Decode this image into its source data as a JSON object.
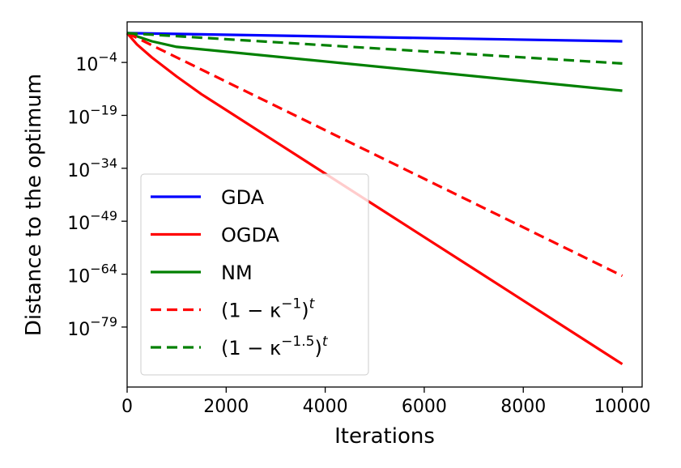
{
  "chart_data": {
    "type": "line",
    "xlabel": "Iterations",
    "ylabel": "Distance to the optimum",
    "xlim": [
      0,
      10400
    ],
    "ylim_log10": [
      -96,
      7.5
    ],
    "xticks": [
      0,
      2000,
      4000,
      6000,
      8000,
      10000
    ],
    "xtick_labels": [
      "0",
      "2000",
      "4000",
      "6000",
      "8000",
      "10000"
    ],
    "yticks_exp": [
      -4,
      -19,
      -34,
      -49,
      -64,
      -79
    ],
    "ytick_base": "10",
    "ytick_exp_labels": [
      "−4",
      "−19",
      "−34",
      "−49",
      "−64",
      "−79"
    ],
    "legend_position": "lower-left",
    "series": [
      {
        "name": "GDA",
        "legend": "GDA",
        "color": "#0000ff",
        "dash": "solid",
        "x": [
          0,
          10000
        ],
        "log10_y": [
          4.3,
          2.0
        ]
      },
      {
        "name": "OGDA",
        "legend": "OGDA",
        "color": "#ff0000",
        "dash": "solid",
        "x": [
          0,
          200,
          500,
          1000,
          1500,
          2000,
          3000,
          4000,
          5000,
          6000,
          7000,
          8000,
          9000,
          10000
        ],
        "log10_y": [
          4.3,
          1.1,
          -2.6,
          -8.0,
          -13.0,
          -17.5,
          -26.5,
          -35.5,
          -44.5,
          -53.5,
          -62.5,
          -71.5,
          -80.5,
          -89.5
        ]
      },
      {
        "name": "NM",
        "legend": "NM",
        "color": "#008000",
        "dash": "solid",
        "x": [
          0,
          500,
          1000,
          10000
        ],
        "log10_y": [
          4.3,
          2.0,
          0.4,
          -12.0
        ]
      },
      {
        "name": "kappa-1",
        "legend_main": "(1 − κ",
        "legend_sup1": "−1",
        "legend_close": ")",
        "legend_sup2": "t",
        "color": "#ff0000",
        "dash": "dashed",
        "x": [
          0,
          10000
        ],
        "log10_y": [
          4.3,
          -64.5
        ]
      },
      {
        "name": "kappa-1.5",
        "legend_main": "(1 − κ",
        "legend_sup1": "−1.5",
        "legend_close": ")",
        "legend_sup2": "t",
        "color": "#008000",
        "dash": "dashed",
        "x": [
          0,
          10000
        ],
        "log10_y": [
          4.3,
          -4.3
        ]
      }
    ]
  }
}
